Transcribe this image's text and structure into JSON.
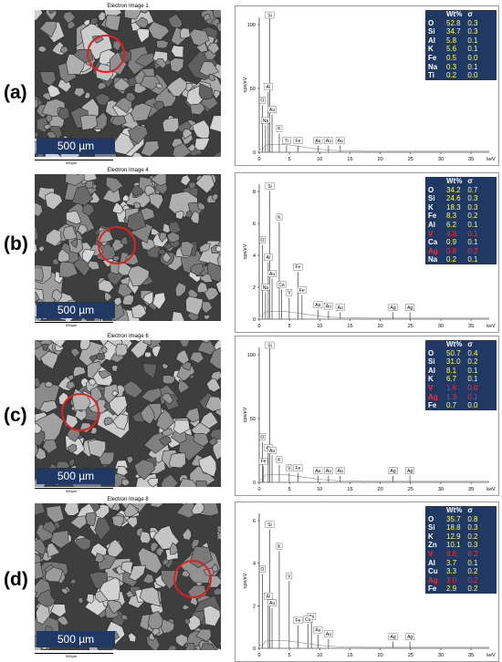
{
  "panels": [
    {
      "label": "(a)",
      "image_title": "Electron Image 1",
      "scale_text": "500 µm",
      "mini_scale": "500µm",
      "ylabel": "cps/eV",
      "xlabel": "keV",
      "yticks": [
        "0",
        "50",
        "100"
      ],
      "xticks": [
        "0",
        "5",
        "10",
        "15",
        "20",
        "25",
        "30",
        "35"
      ],
      "peak_labels": [
        "Si",
        "Al",
        "O",
        "Au",
        "Na",
        "K",
        "Ti",
        "Fe",
        "Au",
        "Au",
        "Au"
      ],
      "table_header": [
        "",
        "Wt%",
        "σ"
      ],
      "table": [
        {
          "el": "O",
          "wt": "52.8",
          "s": "0.3",
          "red": false
        },
        {
          "el": "Si",
          "wt": "34.7",
          "s": "0.3",
          "red": false
        },
        {
          "el": "Al",
          "wt": "5.8",
          "s": "0.1",
          "red": false
        },
        {
          "el": "K",
          "wt": "5.6",
          "s": "0.1",
          "red": false
        },
        {
          "el": "Fe",
          "wt": "0.5",
          "s": "0.0",
          "red": false
        },
        {
          "el": "Na",
          "wt": "0.3",
          "s": "0.1",
          "red": false
        },
        {
          "el": "Ti",
          "wt": "0.2",
          "s": "0.0",
          "red": false
        }
      ]
    },
    {
      "label": "(b)",
      "image_title": "Electron Image 4",
      "scale_text": "500 µm",
      "mini_scale": "500µm",
      "ylabel": "cps/eV",
      "xlabel": "keV",
      "yticks": [
        "0",
        "2",
        "4",
        "6",
        "8"
      ],
      "xticks": [
        "0",
        "5",
        "10",
        "15",
        "20",
        "25",
        "30",
        "35"
      ],
      "peak_labels": [
        "Si",
        "K",
        "O",
        "Al",
        "Fe",
        "Au",
        "Ca",
        "Fe",
        "V",
        "Au",
        "Au",
        "Au",
        "Ag",
        "Ag",
        "Na"
      ],
      "table_header": [
        "",
        "Wt%",
        "σ"
      ],
      "table": [
        {
          "el": "O",
          "wt": "34.2",
          "s": "0.7",
          "red": false
        },
        {
          "el": "Si",
          "wt": "24.6",
          "s": "0.3",
          "red": false
        },
        {
          "el": "K",
          "wt": "18.3",
          "s": "0.3",
          "red": false
        },
        {
          "el": "Fe",
          "wt": "8.3",
          "s": "0.2",
          "red": false
        },
        {
          "el": "Al",
          "wt": "6.2",
          "s": "0.1",
          "red": false
        },
        {
          "el": "V",
          "wt": "4.8",
          "s": "0.1",
          "red": true
        },
        {
          "el": "Ca",
          "wt": "0.9",
          "s": "0.1",
          "red": false
        },
        {
          "el": "Ag",
          "wt": "0.8",
          "s": "0.2",
          "red": true
        },
        {
          "el": "Na",
          "wt": "0.2",
          "s": "0.1",
          "red": false
        }
      ]
    },
    {
      "label": "(c)",
      "image_title": "Electron Image 6",
      "scale_text": "500 µm",
      "mini_scale": "500µm",
      "ylabel": "cps/eV",
      "xlabel": "keV",
      "yticks": [
        "0",
        "50",
        "100"
      ],
      "xticks": [
        "0",
        "5",
        "10",
        "15",
        "20",
        "25",
        "30",
        "35"
      ],
      "peak_labels": [
        "Si",
        "O",
        "Al",
        "Au",
        "Fe",
        "K",
        "V",
        "Fe",
        "Au",
        "Au",
        "Au",
        "Ag",
        "Ag"
      ],
      "table_header": [
        "",
        "Wt%",
        "σ"
      ],
      "table": [
        {
          "el": "O",
          "wt": "50.7",
          "s": "0.4",
          "red": false
        },
        {
          "el": "Si",
          "wt": "31.0",
          "s": "0.2",
          "red": false
        },
        {
          "el": "Al",
          "wt": "8.1",
          "s": "0.1",
          "red": false
        },
        {
          "el": "K",
          "wt": "6.7",
          "s": "0.1",
          "red": false
        },
        {
          "el": "V",
          "wt": "1.6",
          "s": "0.0",
          "red": true
        },
        {
          "el": "Ag",
          "wt": "1.3",
          "s": "0.1",
          "red": true
        },
        {
          "el": "Fe",
          "wt": "0.7",
          "s": "0.0",
          "red": false
        }
      ]
    },
    {
      "label": "(d)",
      "image_title": "Electron Image 8",
      "scale_text": "500 µm",
      "mini_scale": "500µm",
      "ylabel": "cps/eV",
      "xlabel": "keV",
      "yticks": [
        "0",
        "2",
        "4",
        "6"
      ],
      "xticks": [
        "0",
        "5",
        "10",
        "15",
        "20",
        "25",
        "30",
        "35"
      ],
      "peak_labels": [
        "Si",
        "K",
        "O",
        "Al",
        "Au",
        "V",
        "Zn",
        "Cu",
        "Fe",
        "Au",
        "Au",
        "Ag",
        "Ag"
      ],
      "table_header": [
        "",
        "Wt%",
        "σ"
      ],
      "table": [
        {
          "el": "O",
          "wt": "35.7",
          "s": "0.8",
          "red": false
        },
        {
          "el": "Si",
          "wt": "18.8",
          "s": "0.3",
          "red": false
        },
        {
          "el": "K",
          "wt": "12.9",
          "s": "0.2",
          "red": false
        },
        {
          "el": "Zn",
          "wt": "10.1",
          "s": "0.3",
          "red": false
        },
        {
          "el": "V",
          "wt": "9.6",
          "s": "0.2",
          "red": true
        },
        {
          "el": "Al",
          "wt": "3.7",
          "s": "0.1",
          "red": false
        },
        {
          "el": "Cu",
          "wt": "3.3",
          "s": "0.2",
          "red": false
        },
        {
          "el": "Ag",
          "wt": "3.0",
          "s": "0.2",
          "red": true
        },
        {
          "el": "Fe",
          "wt": "2.9",
          "s": "0.2",
          "red": false
        }
      ]
    }
  ],
  "colors": {
    "table_bg": "#1f3864",
    "table_text": "#ffff66",
    "highlight": "#ff2a2a",
    "circle": "#e02020"
  }
}
